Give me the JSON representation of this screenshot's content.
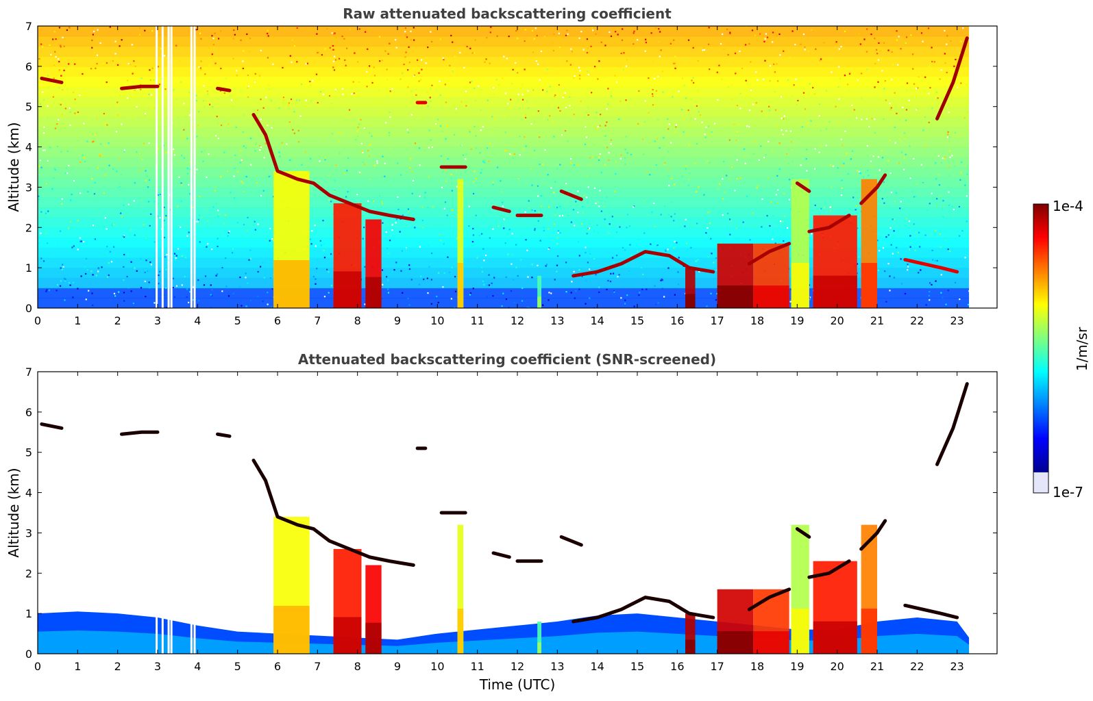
{
  "chart_data": [
    {
      "type": "heatmap",
      "title": "Raw attenuated backscattering coefficient",
      "xlabel": "",
      "ylabel": "Altitude (km)",
      "xlim": [
        0,
        24
      ],
      "ylim": [
        0,
        7
      ],
      "x_ticks": [
        "0",
        "1",
        "2",
        "3",
        "4",
        "5",
        "6",
        "7",
        "8",
        "9",
        "10",
        "11",
        "12",
        "13",
        "14",
        "15",
        "16",
        "17",
        "18",
        "19",
        "20",
        "21",
        "22",
        "23"
      ],
      "y_ticks": [
        "0",
        "1",
        "2",
        "3",
        "4",
        "5",
        "6",
        "7"
      ],
      "data_end_hour": 23.3,
      "noise_texture": true,
      "boundary_layer_top_km": 0.5,
      "gap_hours": [
        2.95,
        3.1,
        3.25,
        3.32,
        3.82,
        3.9
      ],
      "features": [
        {
          "kind": "column",
          "x0": 5.9,
          "x1": 6.8,
          "y0": 0,
          "y1": 3.4,
          "level": 0.62
        },
        {
          "kind": "column",
          "x0": 7.4,
          "x1": 8.1,
          "y0": 0,
          "y1": 2.6,
          "level": 0.85
        },
        {
          "kind": "column",
          "x0": 8.2,
          "x1": 8.6,
          "y0": 0,
          "y1": 2.2,
          "level": 0.88
        },
        {
          "kind": "column",
          "x0": 10.5,
          "x1": 10.65,
          "y0": 0,
          "y1": 3.2,
          "level": 0.6
        },
        {
          "kind": "column",
          "x0": 12.5,
          "x1": 12.6,
          "y0": 0,
          "y1": 0.8,
          "level": 0.45
        },
        {
          "kind": "column",
          "x0": 16.2,
          "x1": 16.45,
          "y0": 0,
          "y1": 1.0,
          "level": 0.95
        },
        {
          "kind": "column",
          "x0": 17.0,
          "x1": 17.9,
          "y0": 0,
          "y1": 1.6,
          "level": 0.92
        },
        {
          "kind": "column",
          "x0": 17.9,
          "x1": 18.8,
          "y0": 0,
          "y1": 1.6,
          "level": 0.82
        },
        {
          "kind": "column",
          "x0": 18.85,
          "x1": 19.3,
          "y0": 0,
          "y1": 3.2,
          "level": 0.55
        },
        {
          "kind": "column",
          "x0": 19.4,
          "x1": 20.5,
          "y0": 0,
          "y1": 2.3,
          "level": 0.85
        },
        {
          "kind": "column",
          "x0": 20.6,
          "x1": 21.0,
          "y0": 0,
          "y1": 3.2,
          "level": 0.75
        },
        {
          "kind": "layer",
          "points": [
            [
              5.4,
              4.8
            ],
            [
              5.7,
              4.3
            ],
            [
              6.0,
              3.4
            ],
            [
              6.5,
              3.2
            ],
            [
              6.9,
              3.1
            ],
            [
              7.3,
              2.8
            ],
            [
              7.8,
              2.6
            ],
            [
              8.3,
              2.4
            ],
            [
              8.8,
              2.3
            ],
            [
              9.4,
              2.2
            ]
          ],
          "level": 0.96
        },
        {
          "kind": "layer",
          "points": [
            [
              13.4,
              0.8
            ],
            [
              14.0,
              0.9
            ],
            [
              14.6,
              1.1
            ],
            [
              15.2,
              1.4
            ],
            [
              15.8,
              1.3
            ],
            [
              16.3,
              1.0
            ],
            [
              16.9,
              0.9
            ]
          ],
          "level": 0.96
        },
        {
          "kind": "layer",
          "points": [
            [
              17.8,
              1.1
            ],
            [
              18.3,
              1.4
            ],
            [
              18.8,
              1.6
            ]
          ],
          "level": 0.96
        },
        {
          "kind": "layer",
          "points": [
            [
              19.3,
              1.9
            ],
            [
              19.8,
              2.0
            ],
            [
              20.3,
              2.3
            ]
          ],
          "level": 0.96
        },
        {
          "kind": "layer",
          "points": [
            [
              20.6,
              2.6
            ],
            [
              21.0,
              3.0
            ],
            [
              21.2,
              3.3
            ]
          ],
          "level": 0.96
        },
        {
          "kind": "layer",
          "points": [
            [
              19.0,
              3.1
            ],
            [
              19.3,
              2.9
            ]
          ],
          "level": 0.96
        },
        {
          "kind": "layer",
          "points": [
            [
              22.5,
              4.7
            ],
            [
              22.9,
              5.6
            ],
            [
              23.25,
              6.7
            ]
          ],
          "level": 0.97
        },
        {
          "kind": "layer",
          "points": [
            [
              0.1,
              5.7
            ],
            [
              0.6,
              5.6
            ]
          ],
          "level": 0.96
        },
        {
          "kind": "layer",
          "points": [
            [
              2.1,
              5.45
            ],
            [
              2.6,
              5.5
            ],
            [
              3.0,
              5.5
            ]
          ],
          "level": 0.96
        },
        {
          "kind": "layer",
          "points": [
            [
              4.5,
              5.45
            ],
            [
              4.8,
              5.4
            ]
          ],
          "level": 0.96
        },
        {
          "kind": "layer",
          "points": [
            [
              9.5,
              5.1
            ],
            [
              9.7,
              5.1
            ]
          ],
          "level": 0.9
        },
        {
          "kind": "layer",
          "points": [
            [
              10.1,
              3.5
            ],
            [
              10.7,
              3.5
            ]
          ],
          "level": 0.96
        },
        {
          "kind": "layer",
          "points": [
            [
              11.4,
              2.5
            ],
            [
              11.8,
              2.4
            ]
          ],
          "level": 0.96
        },
        {
          "kind": "layer",
          "points": [
            [
              12.0,
              2.3
            ],
            [
              12.6,
              2.3
            ]
          ],
          "level": 0.96
        },
        {
          "kind": "layer",
          "points": [
            [
              13.1,
              2.9
            ],
            [
              13.6,
              2.7
            ]
          ],
          "level": 0.96
        },
        {
          "kind": "layer",
          "points": [
            [
              21.7,
              1.2
            ],
            [
              22.6,
              1.0
            ],
            [
              23.0,
              0.9
            ]
          ],
          "level": 0.9
        }
      ]
    },
    {
      "type": "heatmap",
      "title": "Attenuated backscattering coefficient (SNR-screened)",
      "xlabel": "Time (UTC)",
      "ylabel": "Altitude (km)",
      "xlim": [
        0,
        24
      ],
      "ylim": [
        0,
        7
      ],
      "x_ticks": [
        "0",
        "1",
        "2",
        "3",
        "4",
        "5",
        "6",
        "7",
        "8",
        "9",
        "10",
        "11",
        "12",
        "13",
        "14",
        "15",
        "16",
        "17",
        "18",
        "19",
        "20",
        "21",
        "22",
        "23"
      ],
      "y_ticks": [
        "0",
        "1",
        "2",
        "3",
        "4",
        "5",
        "6",
        "7"
      ],
      "data_end_hour": 23.3,
      "noise_texture": false,
      "boundary_layer_points": [
        [
          0,
          1.0
        ],
        [
          1,
          1.05
        ],
        [
          2,
          1.0
        ],
        [
          3,
          0.9
        ],
        [
          4,
          0.7
        ],
        [
          5,
          0.55
        ],
        [
          6,
          0.5
        ],
        [
          7,
          0.45
        ],
        [
          8,
          0.4
        ],
        [
          9,
          0.35
        ],
        [
          10,
          0.5
        ],
        [
          11,
          0.6
        ],
        [
          12,
          0.7
        ],
        [
          13,
          0.8
        ],
        [
          14,
          0.95
        ],
        [
          15,
          1.0
        ],
        [
          16,
          0.9
        ],
        [
          17,
          0.8
        ],
        [
          18,
          0.7
        ],
        [
          19,
          0.6
        ],
        [
          20,
          0.6
        ],
        [
          21,
          0.8
        ],
        [
          22,
          0.9
        ],
        [
          23,
          0.8
        ],
        [
          23.3,
          0.4
        ]
      ],
      "gap_hours": [
        2.95,
        3.1,
        3.25,
        3.32,
        3.82,
        3.9
      ],
      "same_features_as_panel": 0
    }
  ],
  "colorbar": {
    "label": "1/m/sr",
    "max_label": "1e-4",
    "min_label": "1e-7",
    "colormap": "jet",
    "low_extension_color": "#e6e6fa"
  }
}
